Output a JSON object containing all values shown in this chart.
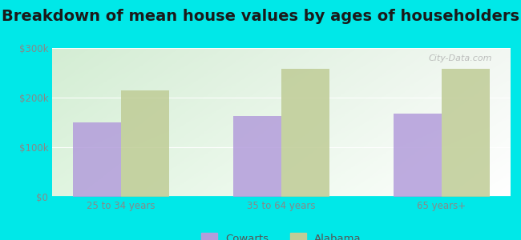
{
  "title": "Breakdown of mean house values by ages of householders",
  "categories": [
    "25 to 34 years",
    "35 to 64 years",
    "65 years+"
  ],
  "cowarts_values": [
    150000,
    163000,
    168000
  ],
  "alabama_values": [
    215000,
    258000,
    258000
  ],
  "ylim": [
    0,
    300000
  ],
  "yticks": [
    0,
    100000,
    200000,
    300000
  ],
  "ytick_labels": [
    "$0",
    "$100k",
    "$200k",
    "$300k"
  ],
  "cowarts_color": "#b39ddb",
  "alabama_color": "#bfcc96",
  "background_color": "#00e8e8",
  "title_fontsize": 14,
  "legend_labels": [
    "Cowarts",
    "Alabama"
  ],
  "bar_width": 0.3
}
